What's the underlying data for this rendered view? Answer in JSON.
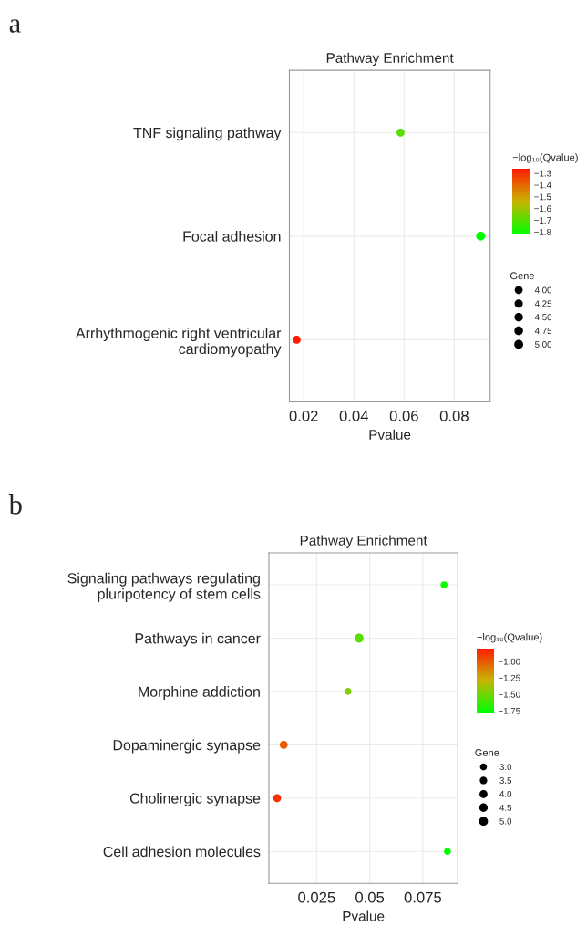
{
  "chart_data": [
    {
      "type": "bubble",
      "orientation": "horizontal",
      "title": "Pathway Enrichment",
      "xlabel": "Pvalue",
      "clabel": "−log₁₀(Qvalue)",
      "legend_title": "Gene",
      "annotations": [
        "a"
      ],
      "categories": [
        "TNF signaling pathway",
        "Focal adhesion",
        "Arrhythmogenic right ventricular\ncardiomyopathy"
      ],
      "values": [
        0.0586,
        0.0905,
        0.0172
      ],
      "sizes": [
        4,
        5,
        4
      ],
      "cvalues": [
        -1.7,
        -1.82,
        -1.26
      ],
      "size_legend": [
        {
          "value": 4.0,
          "label": "4.00"
        },
        {
          "value": 4.25,
          "label": "4.25"
        },
        {
          "value": 4.5,
          "label": "4.50"
        },
        {
          "value": 4.75,
          "label": "4.75"
        },
        {
          "value": 5.0,
          "label": "5.00"
        }
      ],
      "xlim": [
        0.0143,
        0.0943
      ],
      "xticks": [
        0.02,
        0.04,
        0.06,
        0.08
      ],
      "clim": [
        -1.82,
        -1.26
      ],
      "cticks": [
        -1.3,
        -1.4,
        -1.5,
        -1.6,
        -1.7,
        -1.8
      ],
      "grid": true
    },
    {
      "type": "bubble",
      "orientation": "horizontal",
      "title": "Pathway Enrichment",
      "xlabel": "Pvalue",
      "clabel": "−log₁₀(Qvalue)",
      "legend_title": "Gene",
      "annotations": [
        "b"
      ],
      "categories": [
        "Signaling pathways regulating\npluripotency of stem cells",
        "Pathways in cancer",
        "Morphine addiction",
        "Dopaminergic synapse",
        "Cholinergic synapse",
        "Cell adhesion molecules"
      ],
      "values": [
        0.085,
        0.045,
        0.0398,
        0.0095,
        0.0064,
        0.0866
      ],
      "sizes": [
        3,
        5,
        3,
        4,
        4,
        3
      ],
      "cvalues": [
        -1.75,
        -1.55,
        -1.45,
        -1.0,
        -0.88,
        -1.77
      ],
      "size_legend": [
        {
          "value": 3.0,
          "label": "3.0"
        },
        {
          "value": 3.5,
          "label": "3.5"
        },
        {
          "value": 4.0,
          "label": "4.0"
        },
        {
          "value": 4.5,
          "label": "4.5"
        },
        {
          "value": 5.0,
          "label": "5.0"
        }
      ],
      "xlim": [
        0.0025,
        0.0915
      ],
      "xticks": [
        0.025,
        0.05,
        0.075
      ],
      "clim": [
        -1.77,
        -0.8
      ],
      "cticks": [
        {
          "value": -1.0,
          "label": "−1.00"
        },
        {
          "value": -1.25,
          "label": "−1.25"
        },
        {
          "value": -1.5,
          "label": "−1.50"
        },
        {
          "value": -1.75,
          "label": "−1.75"
        }
      ],
      "grid": true
    }
  ]
}
